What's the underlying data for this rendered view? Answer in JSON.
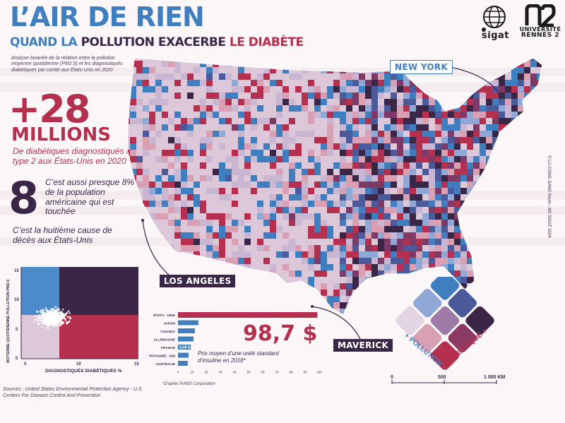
{
  "header": {
    "title": "L’AIR DE RIEN",
    "subtitle_part1": "QUAND LA",
    "subtitle_part2": "POLLUTION EXACERBE",
    "subtitle_part3": "LE DIABÈTE",
    "intro": "Analyse bivariée de la relation entre la pollution moyenne quotidienne (PM2.5) et les diagnostiqués diabétiques par comté aux États-Unis en 2020"
  },
  "stats": {
    "big_number": "+28",
    "big_unit": "MILLIONS",
    "big_desc": "De diabétiques diagnostiqués de type 2 aux États-Unis en 2020",
    "eight": "8",
    "eight_desc": "C’est aussi presque 8% de la population américaine qui est touchée",
    "rank_desc": "C’est la huitième cause de décès aux États-Unis"
  },
  "logos": {
    "sigat": "sigat",
    "univ_line1": "UNIVERSITÉ",
    "univ_line2": "RENNES 2"
  },
  "copyright": "© LU CONG SANG Kevin - M2 SIGAT 2024",
  "cities": {
    "ny": "NEW YORK",
    "la": "LOS ANGELES",
    "maverick": "MAVERICK"
  },
  "scatter": {
    "ylabel": "MOYENNE QUOTIDIENNE POLLUTION PM2.5",
    "xlabel": "DIAGNOSTIQUÉS DIABÉTIQUES %",
    "y_ticks": [
      "15",
      "10",
      "5",
      "0"
    ],
    "x_ticks": [
      "5",
      "10",
      "15"
    ]
  },
  "chart_data": {
    "type": "bar",
    "categories": [
      "ÉTATS - UNIS",
      "JAPON",
      "CANADA",
      "ALLEMAGNE",
      "FRANCE",
      "ROYAUME - UNI",
      "AUSTRALIE"
    ],
    "values": [
      98.7,
      14.4,
      12.0,
      11.0,
      9.08,
      7.5,
      6.9
    ],
    "highlight_label": "9,08 $",
    "x_ticks": [
      "0",
      "10",
      "20",
      "30",
      "40",
      "50",
      "60",
      "70",
      "80",
      "90",
      "100"
    ],
    "xlim": [
      0,
      100
    ]
  },
  "price": {
    "value": "98,7 $",
    "desc": "Prix moyen d’une unité standard d’insuline en 2018*",
    "source": "*D’après RAND Corporation"
  },
  "legend": {
    "pollution": "+ POLLUTION –",
    "diabetique": "– DIABÉTIQUE +"
  },
  "scalebar": {
    "t0": "0",
    "t1": "500",
    "t2": "1 000 KM"
  },
  "sources": "Sources : United States Environmental Protection Agency - U.S. Centers For Disease Control And Prevention"
}
